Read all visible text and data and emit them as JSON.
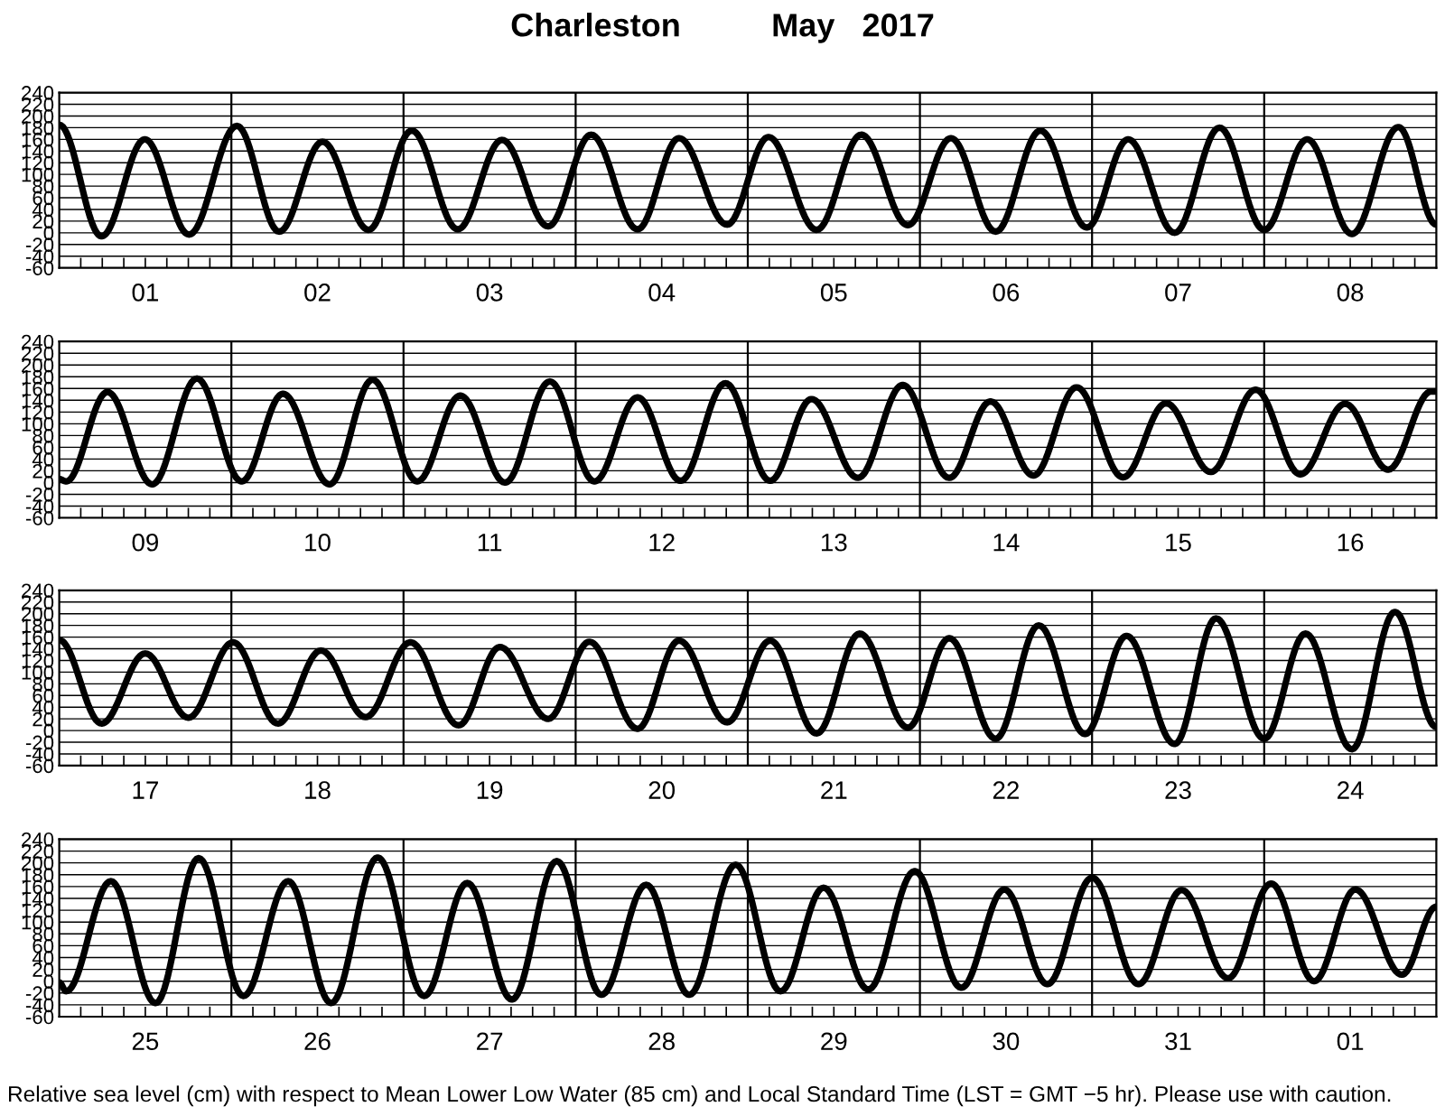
{
  "chart_data": [
    {
      "type": "line",
      "title": "Charleston          May   2017",
      "grid": "y",
      "xlim": [
        "2017-05-01T00:00",
        "2017-05-09T00:00"
      ],
      "ylim": [
        -60,
        240
      ],
      "yticks": [
        -60,
        -40,
        -20,
        0,
        20,
        40,
        60,
        80,
        100,
        120,
        140,
        160,
        180,
        200,
        220,
        240
      ],
      "xticks": [
        {
          "value": "2017-05-01T03:00",
          "label": null
        },
        {
          "value": "2017-05-01T06:00",
          "label": null
        },
        {
          "value": "2017-05-01T09:00",
          "label": null
        },
        {
          "value": "2017-05-01T12:00",
          "label": "01"
        },
        {
          "value": "2017-05-01T15:00",
          "label": null
        },
        {
          "value": "2017-05-01T18:00",
          "label": null
        },
        {
          "value": "2017-05-01T21:00",
          "label": null
        },
        {
          "value": "2017-05-02T03:00",
          "label": null
        },
        {
          "value": "2017-05-02T06:00",
          "label": null
        },
        {
          "value": "2017-05-02T09:00",
          "label": null
        },
        {
          "value": "2017-05-02T12:00",
          "label": "02"
        },
        {
          "value": "2017-05-02T15:00",
          "label": null
        },
        {
          "value": "2017-05-02T18:00",
          "label": null
        },
        {
          "value": "2017-05-02T21:00",
          "label": null
        },
        {
          "value": "2017-05-03T03:00",
          "label": null
        },
        {
          "value": "2017-05-03T06:00",
          "label": null
        },
        {
          "value": "2017-05-03T09:00",
          "label": null
        },
        {
          "value": "2017-05-03T12:00",
          "label": "03"
        },
        {
          "value": "2017-05-03T15:00",
          "label": null
        },
        {
          "value": "2017-05-03T18:00",
          "label": null
        },
        {
          "value": "2017-05-03T21:00",
          "label": null
        },
        {
          "value": "2017-05-04T03:00",
          "label": null
        },
        {
          "value": "2017-05-04T06:00",
          "label": null
        },
        {
          "value": "2017-05-04T09:00",
          "label": null
        },
        {
          "value": "2017-05-04T12:00",
          "label": "04"
        },
        {
          "value": "2017-05-04T15:00",
          "label": null
        },
        {
          "value": "2017-05-04T18:00",
          "label": null
        },
        {
          "value": "2017-05-04T21:00",
          "label": null
        },
        {
          "value": "2017-05-05T03:00",
          "label": null
        },
        {
          "value": "2017-05-05T06:00",
          "label": null
        },
        {
          "value": "2017-05-05T09:00",
          "label": null
        },
        {
          "value": "2017-05-05T12:00",
          "label": "05"
        },
        {
          "value": "2017-05-05T15:00",
          "label": null
        },
        {
          "value": "2017-05-05T18:00",
          "label": null
        },
        {
          "value": "2017-05-05T21:00",
          "label": null
        },
        {
          "value": "2017-05-06T03:00",
          "label": null
        },
        {
          "value": "2017-05-06T06:00",
          "label": null
        },
        {
          "value": "2017-05-06T09:00",
          "label": null
        },
        {
          "value": "2017-05-06T12:00",
          "label": "06"
        },
        {
          "value": "2017-05-06T15:00",
          "label": null
        },
        {
          "value": "2017-05-06T18:00",
          "label": null
        },
        {
          "value": "2017-05-06T21:00",
          "label": null
        },
        {
          "value": "2017-05-07T03:00",
          "label": null
        },
        {
          "value": "2017-05-07T06:00",
          "label": null
        },
        {
          "value": "2017-05-07T09:00",
          "label": null
        },
        {
          "value": "2017-05-07T12:00",
          "label": "07"
        },
        {
          "value": "2017-05-07T15:00",
          "label": null
        },
        {
          "value": "2017-05-07T18:00",
          "label": null
        },
        {
          "value": "2017-05-07T21:00",
          "label": null
        },
        {
          "value": "2017-05-08T03:00",
          "label": null
        },
        {
          "value": "2017-05-08T06:00",
          "label": null
        },
        {
          "value": "2017-05-08T09:00",
          "label": null
        },
        {
          "value": "2017-05-08T12:00",
          "label": "08"
        },
        {
          "value": "2017-05-08T15:00",
          "label": null
        },
        {
          "value": "2017-05-08T18:00",
          "label": null
        },
        {
          "value": "2017-05-08T21:00",
          "label": null
        }
      ],
      "ref_lines": [
        {
          "axis": "x",
          "value": "2017-05-02T00:00",
          "color": "#000000"
        },
        {
          "axis": "x",
          "value": "2017-05-03T00:00",
          "color": "#000000"
        },
        {
          "axis": "x",
          "value": "2017-05-04T00:00",
          "color": "#000000"
        },
        {
          "axis": "x",
          "value": "2017-05-05T00:00",
          "color": "#000000"
        },
        {
          "axis": "x",
          "value": "2017-05-06T00:00",
          "color": "#000000"
        },
        {
          "axis": "x",
          "value": "2017-05-07T00:00",
          "color": "#000000"
        },
        {
          "axis": "x",
          "value": "2017-05-08T00:00",
          "color": "#000000"
        }
      ],
      "series": [
        {
          "color": "#000000",
          "x": [
            "2017-05-01T00:00",
            "2017-05-01T05:54",
            "2017-05-01T11:56",
            "2017-05-01T18:06",
            "2017-05-02T00:46",
            "2017-05-02T06:40",
            "2017-05-02T12:42",
            "2017-05-02T19:08",
            "2017-05-03T01:09",
            "2017-05-03T07:34",
            "2017-05-03T13:44",
            "2017-05-03T20:10",
            "2017-05-04T02:10",
            "2017-05-04T08:38",
            "2017-05-04T14:24",
            "2017-05-04T21:07",
            "2017-05-05T02:53",
            "2017-05-05T09:36",
            "2017-05-05T15:50",
            "2017-05-05T22:19",
            "2017-05-06T04:19",
            "2017-05-06T10:34",
            "2017-05-06T16:48",
            "2017-05-06T23:17",
            "2017-05-07T05:02",
            "2017-05-07T11:31",
            "2017-05-07T17:46",
            "2017-05-08T00:00",
            "2017-05-08T06:00",
            "2017-05-08T12:14",
            "2017-05-08T18:43",
            "2017-05-09T00:00"
          ],
          "values": [
            185,
            -6,
            160,
            -3,
            183,
            2,
            156,
            5,
            175,
            6,
            159,
            11,
            168,
            6,
            162,
            14,
            164,
            5,
            168,
            13,
            162,
            2,
            175,
            9,
            160,
            0,
            180,
            5,
            160,
            -2,
            181,
            14
          ]
        }
      ]
    },
    {
      "type": "line",
      "grid": "y",
      "xlim": [
        "2017-05-09T00:00",
        "2017-05-17T00:00"
      ],
      "ylim": [
        -60,
        240
      ],
      "yticks": [
        -60,
        -40,
        -20,
        0,
        20,
        40,
        60,
        80,
        100,
        120,
        140,
        160,
        180,
        200,
        220,
        240
      ],
      "xticks": [
        {
          "value": "2017-05-09T03:00",
          "label": null
        },
        {
          "value": "2017-05-09T06:00",
          "label": null
        },
        {
          "value": "2017-05-09T09:00",
          "label": null
        },
        {
          "value": "2017-05-09T12:00",
          "label": "09"
        },
        {
          "value": "2017-05-09T15:00",
          "label": null
        },
        {
          "value": "2017-05-09T18:00",
          "label": null
        },
        {
          "value": "2017-05-09T21:00",
          "label": null
        },
        {
          "value": "2017-05-10T03:00",
          "label": null
        },
        {
          "value": "2017-05-10T06:00",
          "label": null
        },
        {
          "value": "2017-05-10T09:00",
          "label": null
        },
        {
          "value": "2017-05-10T12:00",
          "label": "10"
        },
        {
          "value": "2017-05-10T15:00",
          "label": null
        },
        {
          "value": "2017-05-10T18:00",
          "label": null
        },
        {
          "value": "2017-05-10T21:00",
          "label": null
        },
        {
          "value": "2017-05-11T03:00",
          "label": null
        },
        {
          "value": "2017-05-11T06:00",
          "label": null
        },
        {
          "value": "2017-05-11T09:00",
          "label": null
        },
        {
          "value": "2017-05-11T12:00",
          "label": "11"
        },
        {
          "value": "2017-05-11T15:00",
          "label": null
        },
        {
          "value": "2017-05-11T18:00",
          "label": null
        },
        {
          "value": "2017-05-11T21:00",
          "label": null
        },
        {
          "value": "2017-05-12T03:00",
          "label": null
        },
        {
          "value": "2017-05-12T06:00",
          "label": null
        },
        {
          "value": "2017-05-12T09:00",
          "label": null
        },
        {
          "value": "2017-05-12T12:00",
          "label": "12"
        },
        {
          "value": "2017-05-12T15:00",
          "label": null
        },
        {
          "value": "2017-05-12T18:00",
          "label": null
        },
        {
          "value": "2017-05-12T21:00",
          "label": null
        },
        {
          "value": "2017-05-13T03:00",
          "label": null
        },
        {
          "value": "2017-05-13T06:00",
          "label": null
        },
        {
          "value": "2017-05-13T09:00",
          "label": null
        },
        {
          "value": "2017-05-13T12:00",
          "label": "13"
        },
        {
          "value": "2017-05-13T15:00",
          "label": null
        },
        {
          "value": "2017-05-13T18:00",
          "label": null
        },
        {
          "value": "2017-05-13T21:00",
          "label": null
        },
        {
          "value": "2017-05-14T03:00",
          "label": null
        },
        {
          "value": "2017-05-14T06:00",
          "label": null
        },
        {
          "value": "2017-05-14T09:00",
          "label": null
        },
        {
          "value": "2017-05-14T12:00",
          "label": "14"
        },
        {
          "value": "2017-05-14T15:00",
          "label": null
        },
        {
          "value": "2017-05-14T18:00",
          "label": null
        },
        {
          "value": "2017-05-14T21:00",
          "label": null
        },
        {
          "value": "2017-05-15T03:00",
          "label": null
        },
        {
          "value": "2017-05-15T06:00",
          "label": null
        },
        {
          "value": "2017-05-15T09:00",
          "label": null
        },
        {
          "value": "2017-05-15T12:00",
          "label": "15"
        },
        {
          "value": "2017-05-15T15:00",
          "label": null
        },
        {
          "value": "2017-05-15T18:00",
          "label": null
        },
        {
          "value": "2017-05-15T21:00",
          "label": null
        },
        {
          "value": "2017-05-16T03:00",
          "label": null
        },
        {
          "value": "2017-05-16T06:00",
          "label": null
        },
        {
          "value": "2017-05-16T09:00",
          "label": null
        },
        {
          "value": "2017-05-16T12:00",
          "label": "16"
        },
        {
          "value": "2017-05-16T15:00",
          "label": null
        },
        {
          "value": "2017-05-16T18:00",
          "label": null
        },
        {
          "value": "2017-05-16T21:00",
          "label": null
        }
      ],
      "ref_lines": [
        {
          "axis": "x",
          "value": "2017-05-10T00:00",
          "color": "#000000"
        },
        {
          "axis": "x",
          "value": "2017-05-11T00:00",
          "color": "#000000"
        },
        {
          "axis": "x",
          "value": "2017-05-12T00:00",
          "color": "#000000"
        },
        {
          "axis": "x",
          "value": "2017-05-13T00:00",
          "color": "#000000"
        },
        {
          "axis": "x",
          "value": "2017-05-14T00:00",
          "color": "#000000"
        },
        {
          "axis": "x",
          "value": "2017-05-15T00:00",
          "color": "#000000"
        },
        {
          "axis": "x",
          "value": "2017-05-16T00:00",
          "color": "#000000"
        }
      ],
      "series": [
        {
          "color": "#000000",
          "x": [
            "2017-05-09T00:00",
            "2017-05-09T00:58",
            "2017-05-09T06:43",
            "2017-05-09T12:58",
            "2017-05-09T19:12",
            "2017-05-10T01:26",
            "2017-05-10T07:12",
            "2017-05-10T13:41",
            "2017-05-10T19:41",
            "2017-05-11T01:55",
            "2017-05-11T07:55",
            "2017-05-11T14:10",
            "2017-05-11T20:24",
            "2017-05-12T02:38",
            "2017-05-12T08:38",
            "2017-05-12T14:38",
            "2017-05-12T20:53",
            "2017-05-13T03:07",
            "2017-05-13T08:53",
            "2017-05-13T15:22",
            "2017-05-13T21:36",
            "2017-05-14T04:05",
            "2017-05-14T09:50",
            "2017-05-14T15:50",
            "2017-05-14T21:50",
            "2017-05-15T04:19",
            "2017-05-15T10:19",
            "2017-05-15T16:34",
            "2017-05-15T22:48",
            "2017-05-16T05:02",
            "2017-05-16T11:17",
            "2017-05-16T17:17",
            "2017-05-16T23:17",
            "2017-05-17T00:00"
          ],
          "values": [
            6,
            2,
            154,
            -3,
            177,
            2,
            151,
            -3,
            175,
            2,
            148,
            0,
            172,
            2,
            145,
            3,
            169,
            3,
            142,
            8,
            166,
            8,
            138,
            12,
            162,
            9,
            135,
            18,
            158,
            14,
            134,
            22,
            155,
            155
          ]
        }
      ]
    },
    {
      "type": "line",
      "grid": "y",
      "xlim": [
        "2017-05-17T00:00",
        "2017-05-25T00:00"
      ],
      "ylim": [
        -60,
        240
      ],
      "yticks": [
        -60,
        -40,
        -20,
        0,
        20,
        40,
        60,
        80,
        100,
        120,
        140,
        160,
        180,
        200,
        220,
        240
      ],
      "xticks": [
        {
          "value": "2017-05-17T03:00",
          "label": null
        },
        {
          "value": "2017-05-17T06:00",
          "label": null
        },
        {
          "value": "2017-05-17T09:00",
          "label": null
        },
        {
          "value": "2017-05-17T12:00",
          "label": "17"
        },
        {
          "value": "2017-05-17T15:00",
          "label": null
        },
        {
          "value": "2017-05-17T18:00",
          "label": null
        },
        {
          "value": "2017-05-17T21:00",
          "label": null
        },
        {
          "value": "2017-05-18T03:00",
          "label": null
        },
        {
          "value": "2017-05-18T06:00",
          "label": null
        },
        {
          "value": "2017-05-18T09:00",
          "label": null
        },
        {
          "value": "2017-05-18T12:00",
          "label": "18"
        },
        {
          "value": "2017-05-18T15:00",
          "label": null
        },
        {
          "value": "2017-05-18T18:00",
          "label": null
        },
        {
          "value": "2017-05-18T21:00",
          "label": null
        },
        {
          "value": "2017-05-19T03:00",
          "label": null
        },
        {
          "value": "2017-05-19T06:00",
          "label": null
        },
        {
          "value": "2017-05-19T09:00",
          "label": null
        },
        {
          "value": "2017-05-19T12:00",
          "label": "19"
        },
        {
          "value": "2017-05-19T15:00",
          "label": null
        },
        {
          "value": "2017-05-19T18:00",
          "label": null
        },
        {
          "value": "2017-05-19T21:00",
          "label": null
        },
        {
          "value": "2017-05-20T03:00",
          "label": null
        },
        {
          "value": "2017-05-20T06:00",
          "label": null
        },
        {
          "value": "2017-05-20T09:00",
          "label": null
        },
        {
          "value": "2017-05-20T12:00",
          "label": "20"
        },
        {
          "value": "2017-05-20T15:00",
          "label": null
        },
        {
          "value": "2017-05-20T18:00",
          "label": null
        },
        {
          "value": "2017-05-20T21:00",
          "label": null
        },
        {
          "value": "2017-05-21T03:00",
          "label": null
        },
        {
          "value": "2017-05-21T06:00",
          "label": null
        },
        {
          "value": "2017-05-21T09:00",
          "label": null
        },
        {
          "value": "2017-05-21T12:00",
          "label": "21"
        },
        {
          "value": "2017-05-21T15:00",
          "label": null
        },
        {
          "value": "2017-05-21T18:00",
          "label": null
        },
        {
          "value": "2017-05-21T21:00",
          "label": null
        },
        {
          "value": "2017-05-22T03:00",
          "label": null
        },
        {
          "value": "2017-05-22T06:00",
          "label": null
        },
        {
          "value": "2017-05-22T09:00",
          "label": null
        },
        {
          "value": "2017-05-22T12:00",
          "label": "22"
        },
        {
          "value": "2017-05-22T15:00",
          "label": null
        },
        {
          "value": "2017-05-22T18:00",
          "label": null
        },
        {
          "value": "2017-05-22T21:00",
          "label": null
        },
        {
          "value": "2017-05-23T03:00",
          "label": null
        },
        {
          "value": "2017-05-23T06:00",
          "label": null
        },
        {
          "value": "2017-05-23T09:00",
          "label": null
        },
        {
          "value": "2017-05-23T12:00",
          "label": "23"
        },
        {
          "value": "2017-05-23T15:00",
          "label": null
        },
        {
          "value": "2017-05-23T18:00",
          "label": null
        },
        {
          "value": "2017-05-23T21:00",
          "label": null
        },
        {
          "value": "2017-05-24T03:00",
          "label": null
        },
        {
          "value": "2017-05-24T06:00",
          "label": null
        },
        {
          "value": "2017-05-24T09:00",
          "label": null
        },
        {
          "value": "2017-05-24T12:00",
          "label": "24"
        },
        {
          "value": "2017-05-24T15:00",
          "label": null
        },
        {
          "value": "2017-05-24T18:00",
          "label": null
        },
        {
          "value": "2017-05-24T21:00",
          "label": null
        }
      ],
      "ref_lines": [
        {
          "axis": "x",
          "value": "2017-05-18T00:00",
          "color": "#000000"
        },
        {
          "axis": "x",
          "value": "2017-05-19T00:00",
          "color": "#000000"
        },
        {
          "axis": "x",
          "value": "2017-05-20T00:00",
          "color": "#000000"
        },
        {
          "axis": "x",
          "value": "2017-05-21T00:00",
          "color": "#000000"
        },
        {
          "axis": "x",
          "value": "2017-05-22T00:00",
          "color": "#000000"
        },
        {
          "axis": "x",
          "value": "2017-05-23T00:00",
          "color": "#000000"
        },
        {
          "axis": "x",
          "value": "2017-05-24T00:00",
          "color": "#000000"
        }
      ],
      "series": [
        {
          "color": "#000000",
          "x": [
            "2017-05-17T00:00",
            "2017-05-17T05:54",
            "2017-05-17T12:00",
            "2017-05-17T18:00",
            "2017-05-18T00:14",
            "2017-05-18T06:29",
            "2017-05-18T12:29",
            "2017-05-18T18:43",
            "2017-05-19T00:58",
            "2017-05-19T07:41",
            "2017-05-19T13:26",
            "2017-05-19T20:10",
            "2017-05-20T01:55",
            "2017-05-20T08:38",
            "2017-05-20T14:24",
            "2017-05-20T21:07",
            "2017-05-21T03:07",
            "2017-05-21T09:36",
            "2017-05-21T15:36",
            "2017-05-21T22:19",
            "2017-05-22T04:05",
            "2017-05-22T10:34",
            "2017-05-22T16:34",
            "2017-05-22T23:02",
            "2017-05-23T04:48",
            "2017-05-23T11:31",
            "2017-05-23T17:17",
            "2017-05-24T00:00",
            "2017-05-24T05:46",
            "2017-05-24T12:14",
            "2017-05-24T18:14",
            "2017-05-25T00:00"
          ],
          "values": [
            155,
            12,
            132,
            22,
            151,
            12,
            137,
            23,
            151,
            9,
            143,
            20,
            152,
            3,
            154,
            14,
            154,
            -5,
            166,
            5,
            158,
            -14,
            180,
            -6,
            162,
            -23,
            192,
            -14,
            166,
            -32,
            203,
            6
          ]
        }
      ]
    },
    {
      "type": "line",
      "grid": "y",
      "xlim": [
        "2017-05-25T00:00",
        "2017-06-02T00:00"
      ],
      "ylim": [
        -60,
        240
      ],
      "yticks": [
        -60,
        -40,
        -20,
        0,
        20,
        40,
        60,
        80,
        100,
        120,
        140,
        160,
        180,
        200,
        220,
        240
      ],
      "xticks": [
        {
          "value": "2017-05-25T03:00",
          "label": null
        },
        {
          "value": "2017-05-25T06:00",
          "label": null
        },
        {
          "value": "2017-05-25T09:00",
          "label": null
        },
        {
          "value": "2017-05-25T12:00",
          "label": "25"
        },
        {
          "value": "2017-05-25T15:00",
          "label": null
        },
        {
          "value": "2017-05-25T18:00",
          "label": null
        },
        {
          "value": "2017-05-25T21:00",
          "label": null
        },
        {
          "value": "2017-05-26T03:00",
          "label": null
        },
        {
          "value": "2017-05-26T06:00",
          "label": null
        },
        {
          "value": "2017-05-26T09:00",
          "label": null
        },
        {
          "value": "2017-05-26T12:00",
          "label": "26"
        },
        {
          "value": "2017-05-26T15:00",
          "label": null
        },
        {
          "value": "2017-05-26T18:00",
          "label": null
        },
        {
          "value": "2017-05-26T21:00",
          "label": null
        },
        {
          "value": "2017-05-27T03:00",
          "label": null
        },
        {
          "value": "2017-05-27T06:00",
          "label": null
        },
        {
          "value": "2017-05-27T09:00",
          "label": null
        },
        {
          "value": "2017-05-27T12:00",
          "label": "27"
        },
        {
          "value": "2017-05-27T15:00",
          "label": null
        },
        {
          "value": "2017-05-27T18:00",
          "label": null
        },
        {
          "value": "2017-05-27T21:00",
          "label": null
        },
        {
          "value": "2017-05-28T03:00",
          "label": null
        },
        {
          "value": "2017-05-28T06:00",
          "label": null
        },
        {
          "value": "2017-05-28T09:00",
          "label": null
        },
        {
          "value": "2017-05-28T12:00",
          "label": "28"
        },
        {
          "value": "2017-05-28T15:00",
          "label": null
        },
        {
          "value": "2017-05-28T18:00",
          "label": null
        },
        {
          "value": "2017-05-28T21:00",
          "label": null
        },
        {
          "value": "2017-05-29T03:00",
          "label": null
        },
        {
          "value": "2017-05-29T06:00",
          "label": null
        },
        {
          "value": "2017-05-29T09:00",
          "label": null
        },
        {
          "value": "2017-05-29T12:00",
          "label": "29"
        },
        {
          "value": "2017-05-29T15:00",
          "label": null
        },
        {
          "value": "2017-05-29T18:00",
          "label": null
        },
        {
          "value": "2017-05-29T21:00",
          "label": null
        },
        {
          "value": "2017-05-30T03:00",
          "label": null
        },
        {
          "value": "2017-05-30T06:00",
          "label": null
        },
        {
          "value": "2017-05-30T09:00",
          "label": null
        },
        {
          "value": "2017-05-30T12:00",
          "label": "30"
        },
        {
          "value": "2017-05-30T15:00",
          "label": null
        },
        {
          "value": "2017-05-30T18:00",
          "label": null
        },
        {
          "value": "2017-05-30T21:00",
          "label": null
        },
        {
          "value": "2017-05-31T03:00",
          "label": null
        },
        {
          "value": "2017-05-31T06:00",
          "label": null
        },
        {
          "value": "2017-05-31T09:00",
          "label": null
        },
        {
          "value": "2017-05-31T12:00",
          "label": "31"
        },
        {
          "value": "2017-05-31T15:00",
          "label": null
        },
        {
          "value": "2017-05-31T18:00",
          "label": null
        },
        {
          "value": "2017-05-31T21:00",
          "label": null
        },
        {
          "value": "2017-06-01T03:00",
          "label": null
        },
        {
          "value": "2017-06-01T06:00",
          "label": null
        },
        {
          "value": "2017-06-01T09:00",
          "label": null
        },
        {
          "value": "2017-06-01T12:00",
          "label": "01"
        },
        {
          "value": "2017-06-01T15:00",
          "label": null
        },
        {
          "value": "2017-06-01T18:00",
          "label": null
        },
        {
          "value": "2017-06-01T21:00",
          "label": null
        }
      ],
      "ref_lines": [
        {
          "axis": "x",
          "value": "2017-05-26T00:00",
          "color": "#000000"
        },
        {
          "axis": "x",
          "value": "2017-05-27T00:00",
          "color": "#000000"
        },
        {
          "axis": "x",
          "value": "2017-05-28T00:00",
          "color": "#000000"
        },
        {
          "axis": "x",
          "value": "2017-05-29T00:00",
          "color": "#000000"
        },
        {
          "axis": "x",
          "value": "2017-05-30T00:00",
          "color": "#000000"
        },
        {
          "axis": "x",
          "value": "2017-05-31T00:00",
          "color": "#000000"
        },
        {
          "axis": "x",
          "value": "2017-06-01T00:00",
          "color": "#000000"
        }
      ],
      "annotations": [
        "Relative sea level (cm) with respect to Mean Lower Low Water (85 cm) and Local Standard Time (LST = GMT −5 hr). Please use with caution."
      ],
      "series": [
        {
          "color": "#000000",
          "x": [
            "2017-05-25T00:00",
            "2017-05-25T00:58",
            "2017-05-25T07:12",
            "2017-05-25T13:26",
            "2017-05-25T19:26",
            "2017-05-26T01:41",
            "2017-05-26T07:55",
            "2017-05-26T13:55",
            "2017-05-26T20:24",
            "2017-05-27T02:53",
            "2017-05-27T08:53",
            "2017-05-27T15:07",
            "2017-05-27T21:22",
            "2017-05-28T03:36",
            "2017-05-28T09:50",
            "2017-05-28T15:50",
            "2017-05-28T22:19",
            "2017-05-29T04:34",
            "2017-05-29T10:34",
            "2017-05-29T16:48",
            "2017-05-29T23:17",
            "2017-05-30T05:46",
            "2017-05-30T11:46",
            "2017-05-30T17:46",
            "2017-05-31T00:00",
            "2017-05-31T06:29",
            "2017-05-31T12:29",
            "2017-05-31T18:58",
            "2017-06-01T00:58",
            "2017-06-01T06:58",
            "2017-06-01T12:43",
            "2017-06-01T19:12",
            "2017-06-02T00:00"
          ],
          "values": [
            -2,
            -17,
            169,
            -37,
            208,
            -25,
            169,
            -37,
            209,
            -25,
            166,
            -31,
            203,
            -23,
            163,
            -23,
            197,
            -17,
            158,
            -14,
            186,
            -11,
            155,
            -5,
            175,
            -5,
            154,
            5,
            165,
            0,
            155,
            11,
            126
          ]
        }
      ]
    }
  ]
}
